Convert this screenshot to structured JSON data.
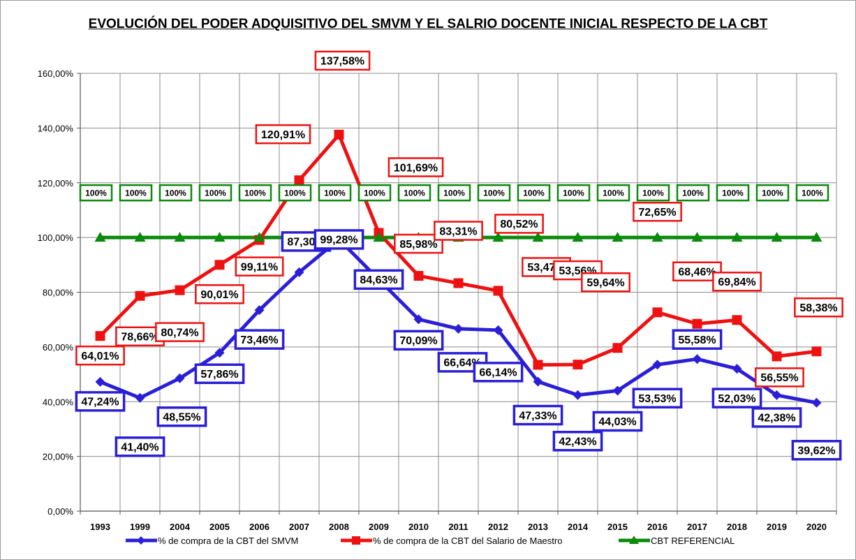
{
  "chart_data": {
    "type": "line",
    "title": "EVOLUCIÓN DEL PODER ADQUISITIVO DEL SMVM Y EL SALRIO DOCENTE INICIAL RESPECTO DE LA CBT",
    "categories": [
      "1993",
      "1999",
      "2004",
      "2005",
      "2006",
      "2007",
      "2008",
      "2009",
      "2010",
      "2011",
      "2012",
      "2013",
      "2014",
      "2015",
      "2016",
      "2017",
      "2018",
      "2019",
      "2020"
    ],
    "ylim": [
      0,
      160
    ],
    "yticks": [
      0,
      20,
      40,
      60,
      80,
      100,
      120,
      140,
      160
    ],
    "ytick_labels": [
      "0,00%",
      "20,00%",
      "40,00%",
      "60,00%",
      "80,00%",
      "100,00%",
      "120,00%",
      "140,00%",
      "160,00%"
    ],
    "grid": true,
    "legend_position": "bottom",
    "series": [
      {
        "name": "% de compra de la CBT del SMVM",
        "color": "#2a1fd6",
        "marker": "diamond",
        "values": [
          47.24,
          41.4,
          48.55,
          57.86,
          73.46,
          87.3,
          99.28,
          84.63,
          70.09,
          66.64,
          66.14,
          47.33,
          42.43,
          44.03,
          53.53,
          55.58,
          52.03,
          42.38,
          39.62
        ],
        "labels": [
          "47,24%",
          "41,40%",
          "48,55%",
          "57,86%",
          "73,46%",
          "87,30%",
          "99,28%",
          "84,63%",
          "70,09%",
          "66,64%",
          "66,14%",
          "47,33%",
          "42,43%",
          "44,03%",
          "53,53%",
          "55,58%",
          "52,03%",
          "42,38%",
          "39,62%"
        ]
      },
      {
        "name": "% de compra de la CBT del Salario de Maestro",
        "color": "#ee1111",
        "marker": "square",
        "values": [
          64.01,
          78.66,
          80.74,
          90.01,
          99.11,
          120.91,
          137.58,
          101.69,
          85.98,
          83.31,
          80.52,
          53.47,
          53.56,
          59.64,
          72.65,
          68.46,
          69.84,
          56.55,
          58.38
        ],
        "labels": [
          "64,01%",
          "78,66%",
          "80,74%",
          "90,01%",
          "99,11%",
          "120,91%",
          "137,58%",
          "101,69%",
          "85,98%",
          "83,31%",
          "80,52%",
          "53,47%",
          "53,56%",
          "59,64%",
          "72,65%",
          "68,46%",
          "69,84%",
          "56,55%",
          "58,38%"
        ]
      },
      {
        "name": "CBT REFERENCIAL",
        "color": "#0a8a0a",
        "marker": "triangle",
        "values": [
          100,
          100,
          100,
          100,
          100,
          100,
          100,
          100,
          100,
          100,
          100,
          100,
          100,
          100,
          100,
          100,
          100,
          100,
          100
        ],
        "labels": [
          "100%",
          "100%",
          "100%",
          "100%",
          "100%",
          "100%",
          "100%",
          "100%",
          "100%",
          "100%",
          "100%",
          "100%",
          "100%",
          "100%",
          "100%",
          "100%",
          "100%",
          "100%",
          "100%"
        ]
      }
    ]
  }
}
